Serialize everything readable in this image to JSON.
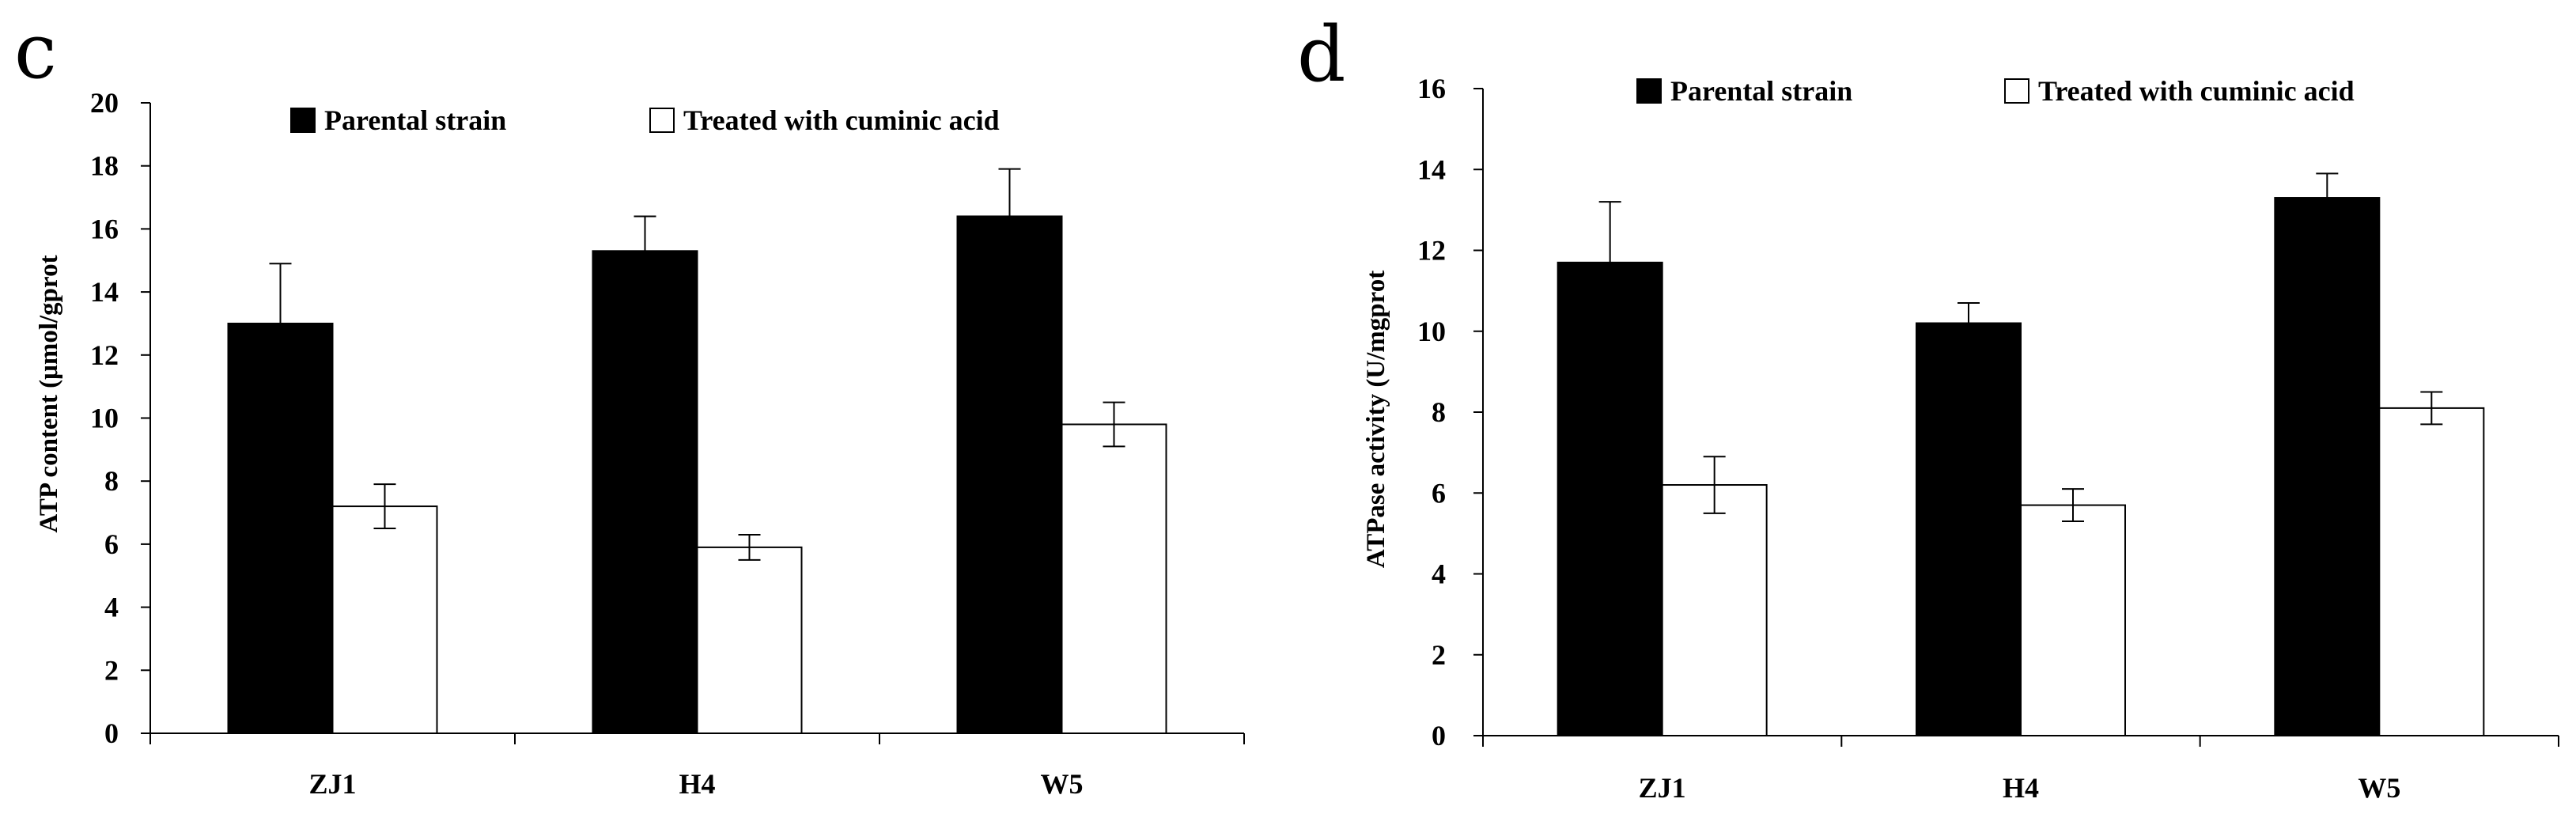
{
  "chart_data": [
    {
      "panel": "c",
      "type": "bar",
      "title": "",
      "xlabel": "",
      "ylabel": "ATP content (μmol/gprot",
      "ylim": [
        0,
        20
      ],
      "ytick_step": 2,
      "categories": [
        "ZJ1",
        "H4",
        "W5"
      ],
      "legend_position": "top",
      "series": [
        {
          "name": "Parental strain",
          "color": "#000000",
          "values": [
            13.0,
            15.3,
            16.4
          ],
          "errors": [
            1.9,
            1.1,
            1.5
          ]
        },
        {
          "name": "Treated with cuminic acid",
          "color": "#ffffff",
          "values": [
            7.2,
            5.9,
            9.8
          ],
          "errors": [
            0.7,
            0.4,
            0.7
          ]
        }
      ]
    },
    {
      "panel": "d",
      "type": "bar",
      "title": "",
      "xlabel": "",
      "ylabel": "ATPase activity (U/mgprot",
      "ylim": [
        0,
        16
      ],
      "ytick_step": 2,
      "categories": [
        "ZJ1",
        "H4",
        "W5"
      ],
      "legend_position": "top",
      "series": [
        {
          "name": "Parental strain",
          "color": "#000000",
          "values": [
            11.7,
            10.2,
            13.3
          ],
          "errors": [
            1.5,
            0.5,
            0.6
          ]
        },
        {
          "name": "Treated with cuminic acid",
          "color": "#ffffff",
          "values": [
            6.2,
            5.7,
            8.1
          ],
          "errors": [
            0.7,
            0.4,
            0.4
          ]
        }
      ]
    }
  ]
}
